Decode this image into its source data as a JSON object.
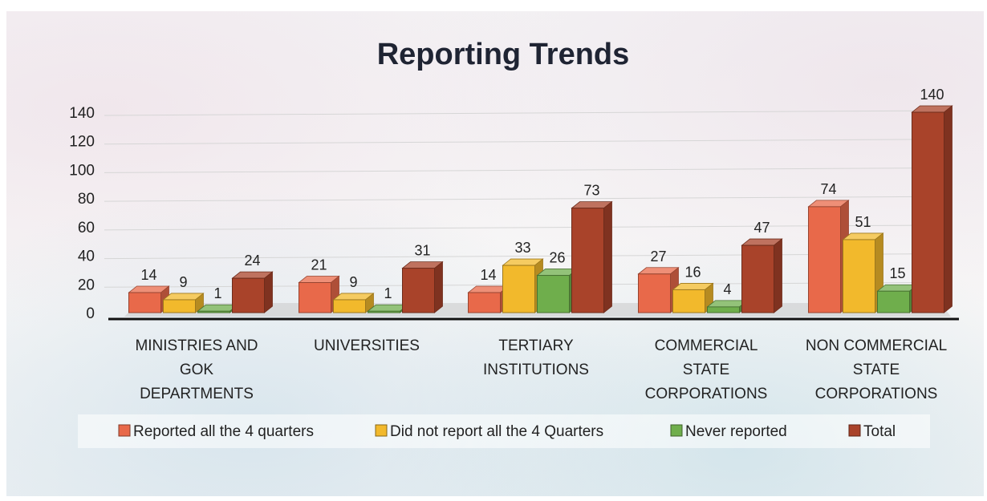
{
  "chart_data": {
    "type": "bar",
    "title": "Reporting Trends",
    "categories": [
      [
        "MINISTRIES AND",
        "GOK",
        "DEPARTMENTS"
      ],
      [
        "UNIVERSITIES"
      ],
      [
        "TERTIARY",
        "INSTITUTIONS"
      ],
      [
        "COMMERCIAL",
        "STATE",
        "CORPORATIONS"
      ],
      [
        "NON COMMERCIAL",
        "STATE",
        "CORPORATIONS"
      ]
    ],
    "series": [
      {
        "name": "Reported all the 4 quarters",
        "values": [
          14,
          21,
          14,
          27,
          74
        ],
        "color": "#e8694a"
      },
      {
        "name": "Did not report all the 4 Quarters",
        "values": [
          9,
          9,
          33,
          16,
          51
        ],
        "color": "#f2b92c"
      },
      {
        "name": "Never reported",
        "values": [
          1,
          1,
          26,
          4,
          15
        ],
        "color": "#6fae4c"
      },
      {
        "name": "Total",
        "values": [
          24,
          31,
          73,
          47,
          140
        ],
        "color": "#a9432a"
      }
    ],
    "yticks": [
      0,
      20,
      40,
      60,
      80,
      100,
      120,
      140
    ],
    "ylim": [
      0,
      140
    ],
    "xlabel": "",
    "ylabel": "",
    "grid": true,
    "legend_position": "bottom"
  }
}
